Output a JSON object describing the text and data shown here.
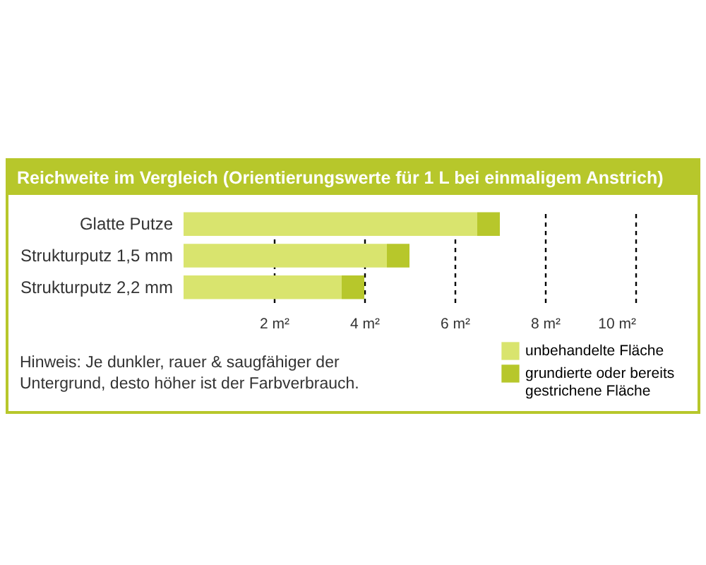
{
  "chart_data": {
    "type": "bar",
    "orientation": "horizontal",
    "stacked": true,
    "title": "Reichweite im Vergleich (Orientierungswerte für 1 L bei einmaligem Anstrich)",
    "categories": [
      "Glatte Putze",
      "Strukturputz 1,5 mm",
      "Strukturputz 2,2 mm"
    ],
    "series": [
      {
        "name": "unbehandelte Fläche",
        "color": "#d9e46e",
        "values": [
          6.5,
          4.5,
          3.5
        ]
      },
      {
        "name": "grundierte oder bereits gestrichene Fläche",
        "color": "#b7c72b",
        "values": [
          0.5,
          0.5,
          0.5
        ]
      }
    ],
    "xlim": [
      0,
      10
    ],
    "xticks": [
      {
        "value": 2,
        "label": "2 m²"
      },
      {
        "value": 4,
        "label": "4 m²"
      },
      {
        "value": 6,
        "label": "6 m²"
      },
      {
        "value": 8,
        "label": "8 m²"
      },
      {
        "value": 10,
        "label": "10 m²"
      }
    ],
    "grid": "x",
    "legend": "bottom right",
    "annotations": [
      "Hinweis: Je dunkler, rauer & saugfähiger der Untergrund, desto höher ist der Farbverbrauch."
    ]
  }
}
